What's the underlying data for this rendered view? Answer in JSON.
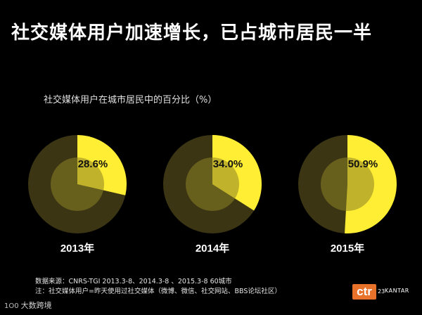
{
  "title": "社交媒体用户加速增长，已占城市居民一半",
  "subtitle": "社交媒体用户在城市居民中的百分比（%）",
  "colors": {
    "background": "#000000",
    "outer_ring": "#3b3514",
    "inner_circle": "#8c8123",
    "slice": "#ffee33"
  },
  "chart_data": {
    "type": "pie",
    "title": "社交媒体用户在城市居民中的百分比（%）",
    "unit": "%",
    "categories": [
      "2013年",
      "2014年",
      "2015年"
    ],
    "values": [
      28.6,
      34.0,
      50.9
    ],
    "value_labels": [
      "28.6%",
      "34.0%",
      "50.9%"
    ]
  },
  "notes": {
    "source": "数据来源：CNRS-TGI 2013.3-8、2014.3-8 、2015.3-8  60城市",
    "definition": "注：社交媒体用户=昨天使用过社交媒体（微博、微信、社交网站、BBS论坛社区）"
  },
  "watermark": {
    "mark": "1O0",
    "text": "大数跨境"
  },
  "logo": {
    "text": "ctr",
    "number": "23",
    "brand": "KANTAR",
    "color": "#e8722a"
  }
}
